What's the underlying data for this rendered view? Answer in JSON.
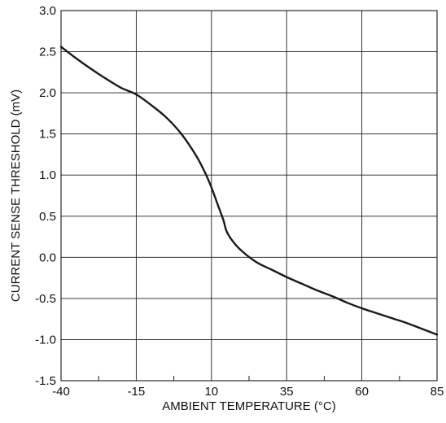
{
  "chart_data": {
    "type": "line",
    "title": "",
    "xlabel": "AMBIENT TEMPERATURE (°C)",
    "ylabel": "CURRENT SENSE THRESHOLD (mV)",
    "xlim": [
      -40,
      85
    ],
    "ylim": [
      -1.5,
      3.0
    ],
    "grid": true,
    "legend": "none",
    "x_ticks": [
      -40,
      -15,
      10,
      35,
      60,
      85
    ],
    "x_tick_labels": [
      "-40",
      "-15",
      "10",
      "35",
      "60",
      "85"
    ],
    "y_ticks": [
      3.0,
      2.5,
      2.0,
      1.5,
      1.0,
      0.5,
      0.0,
      -0.5,
      -1.0,
      -1.5
    ],
    "y_tick_labels": [
      "3.0",
      "2.5",
      "2.0",
      "1.5",
      "1.0",
      "0.5",
      "0.0",
      "-0.5",
      "-1.0",
      "-1.5"
    ],
    "x_minor_ticks": [
      -27.5,
      -2.5,
      22.5,
      47.5,
      72.5
    ],
    "series": [
      {
        "x": [
          -40,
          -35,
          -30,
          -25,
          -20,
          -15,
          -10,
          -5,
          0,
          5,
          8,
          10,
          12,
          14,
          15,
          17,
          20,
          25,
          30,
          35,
          40,
          45,
          50,
          55,
          60,
          65,
          70,
          75,
          80,
          85
        ],
        "y": [
          2.56,
          2.42,
          2.29,
          2.17,
          2.06,
          1.98,
          1.85,
          1.7,
          1.5,
          1.23,
          1.02,
          0.85,
          0.65,
          0.45,
          0.32,
          0.2,
          0.08,
          -0.06,
          -0.15,
          -0.24,
          -0.32,
          -0.4,
          -0.47,
          -0.55,
          -0.62,
          -0.68,
          -0.74,
          -0.8,
          -0.87,
          -0.94
        ]
      }
    ]
  },
  "colors": {
    "line": "#1a1a1a",
    "grid": "#1f1f1f",
    "background": "#ffffff"
  }
}
